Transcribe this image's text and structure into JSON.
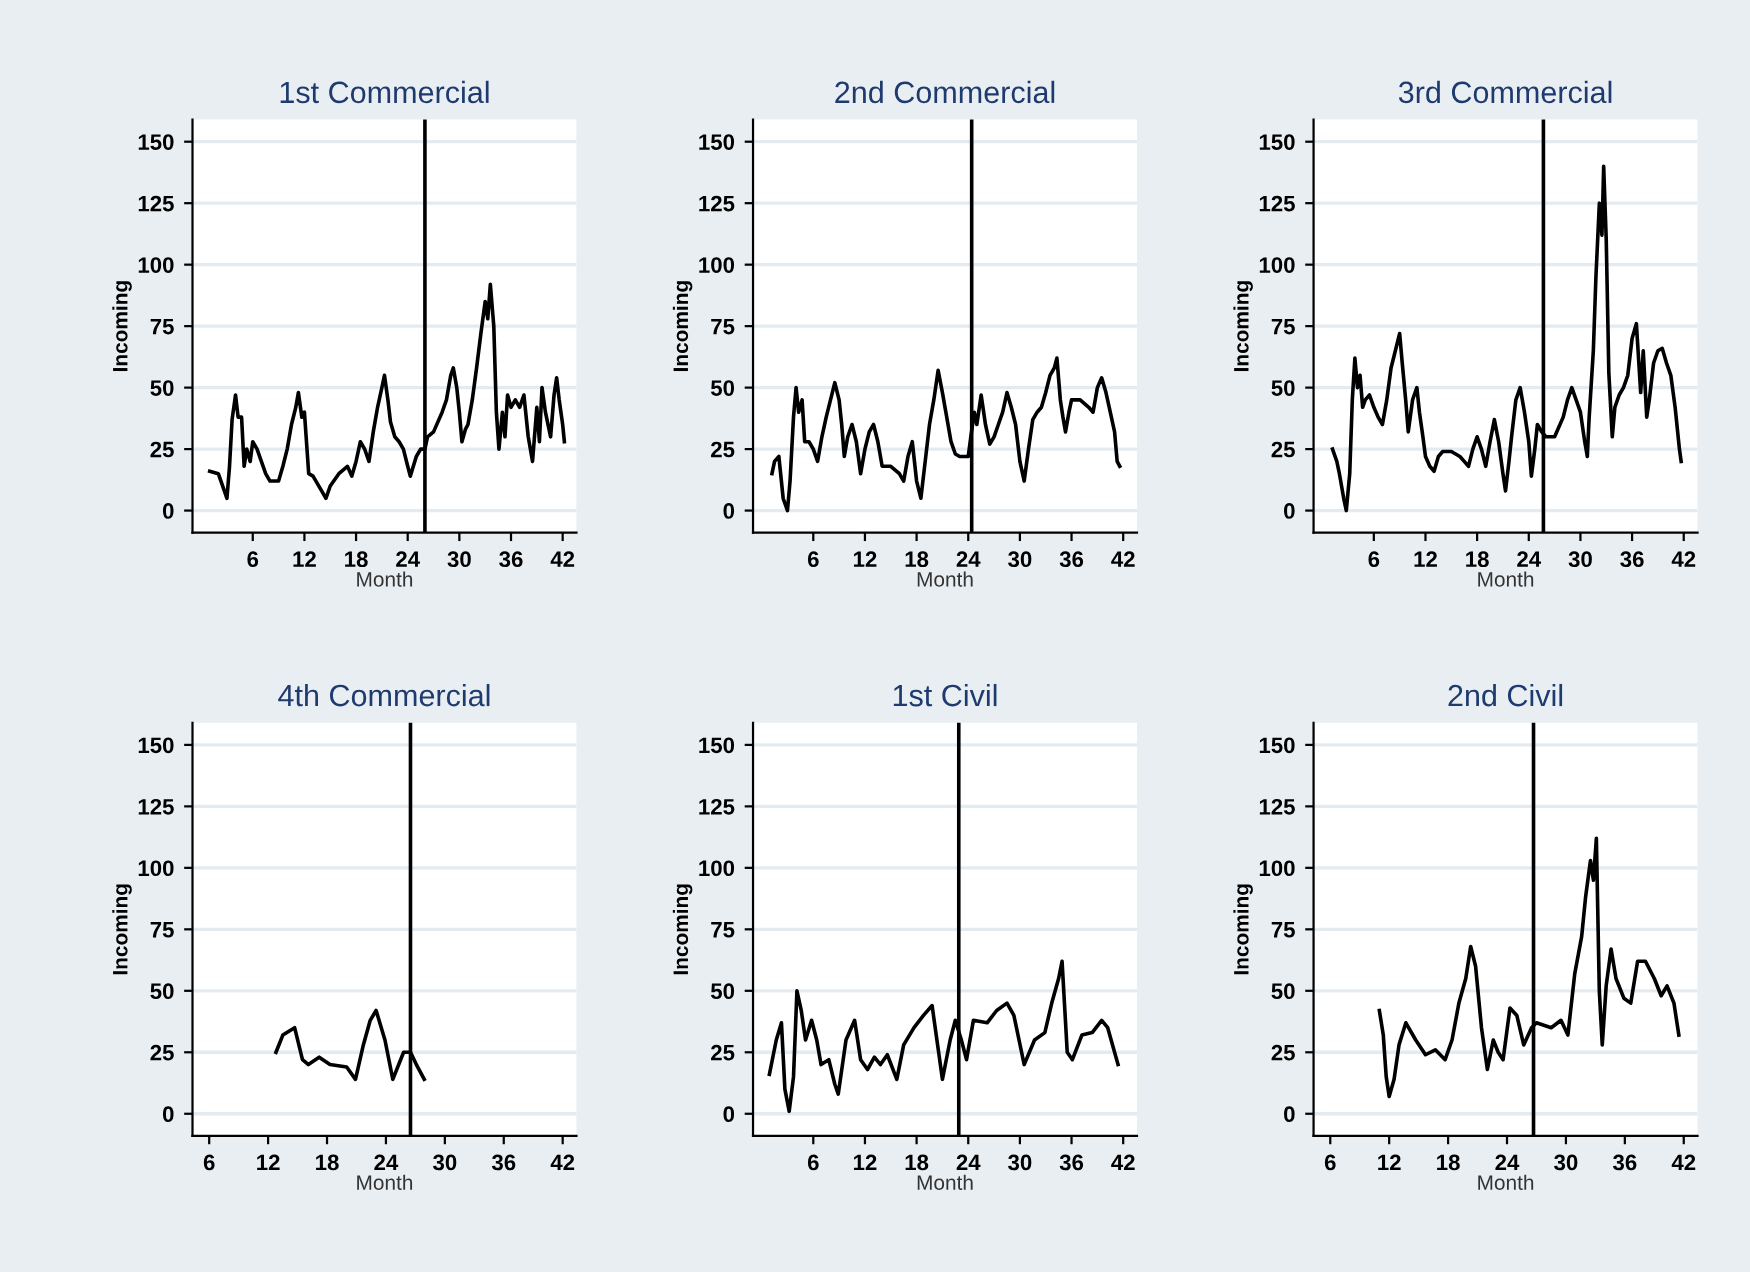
{
  "chart_data": [
    {
      "type": "line",
      "title": "1st Commercial",
      "xlabel": "Month",
      "ylabel": "Incoming",
      "xlim": [
        -1,
        43.6
      ],
      "ylim": [
        -9,
        159
      ],
      "xticks": [
        6,
        12,
        18,
        24,
        30,
        36,
        42
      ],
      "yticks": [
        0,
        25,
        50,
        75,
        100,
        125,
        150
      ],
      "grid": "y",
      "ref_lines": [
        {
          "axis": "x",
          "value": 26,
          "color": "#000000"
        }
      ],
      "series": [
        {
          "color": "#000000",
          "x": [
            1,
            2,
            2.7,
            3,
            3.3,
            3.6,
            4,
            4.3,
            4.7,
            5,
            5.3,
            5.7,
            6,
            6.5,
            7,
            7.5,
            8,
            9,
            9.5,
            10,
            10.5,
            11,
            11.3,
            11.7,
            12,
            12.5,
            13,
            14,
            14.5,
            15,
            16,
            17,
            17.5,
            18,
            18.5,
            19,
            19.5,
            20,
            20.5,
            21,
            21.3,
            21.7,
            22,
            22.5,
            23,
            23.5,
            24,
            24.3,
            25,
            25.5,
            26,
            26.3,
            27,
            28,
            28.5,
            29,
            29.3,
            29.7,
            30,
            30.3,
            30.7,
            31,
            31.5,
            32,
            32.5,
            33,
            33.3,
            33.6,
            34,
            34.3,
            34.6,
            35,
            35.3,
            35.6,
            36,
            36.5,
            37,
            37.5,
            38,
            38.5,
            39,
            39.3,
            39.6,
            40,
            40.3,
            40.6,
            41,
            41.3,
            41.6,
            42,
            42.2
          ],
          "values": [
            16,
            15,
            8,
            5,
            18,
            37,
            47,
            38,
            38,
            18,
            25,
            20,
            28,
            25,
            20,
            15,
            12,
            12,
            18,
            25,
            35,
            42,
            48,
            38,
            40,
            15,
            14,
            8,
            5,
            10,
            15,
            18,
            14,
            20,
            28,
            25,
            20,
            32,
            42,
            50,
            55,
            45,
            36,
            30,
            28,
            25,
            18,
            14,
            22,
            25,
            25,
            30,
            32,
            40,
            45,
            55,
            58,
            50,
            40,
            28,
            33,
            35,
            45,
            58,
            72,
            85,
            78,
            92,
            75,
            40,
            25,
            40,
            30,
            47,
            42,
            45,
            42,
            47,
            30,
            20,
            42,
            28,
            50,
            40,
            35,
            30,
            47,
            54,
            45,
            35,
            28
          ]
        }
      ]
    },
    {
      "type": "line",
      "title": "2nd Commercial",
      "xlabel": "Month",
      "ylabel": "Incoming",
      "xlim": [
        -1,
        43.6
      ],
      "ylim": [
        -9,
        159
      ],
      "xticks": [
        6,
        12,
        18,
        24,
        30,
        36,
        42
      ],
      "yticks": [
        0,
        25,
        50,
        75,
        100,
        125,
        150
      ],
      "grid": "y",
      "ref_lines": [
        {
          "axis": "x",
          "value": 24.4,
          "color": "#000000"
        }
      ],
      "series": [
        {
          "color": "#000000",
          "x": [
            1.2,
            1.5,
            2,
            2.5,
            3,
            3.3,
            3.7,
            4,
            4.3,
            4.7,
            5,
            5.5,
            6,
            6.5,
            7,
            7.5,
            8,
            8.5,
            9,
            9.3,
            9.6,
            10,
            10.5,
            11,
            11.5,
            12,
            12.5,
            13,
            13.5,
            14,
            15,
            16,
            16.5,
            17,
            17.5,
            18,
            18.5,
            19,
            19.5,
            20,
            20.5,
            21,
            21.5,
            22,
            22.5,
            23,
            24,
            24.3,
            24.7,
            25,
            25.5,
            26,
            26.5,
            27,
            27.5,
            28,
            28.5,
            29,
            29.5,
            30,
            30.5,
            31,
            31.5,
            32,
            32.5,
            33,
            33.5,
            34,
            34.3,
            34.7,
            35,
            35.3,
            35.7,
            36,
            37,
            38,
            38.5,
            39,
            39.5,
            40,
            40.5,
            41,
            41.3,
            41.6
          ],
          "values": [
            15,
            20,
            22,
            5,
            0,
            12,
            38,
            50,
            40,
            45,
            28,
            28,
            25,
            20,
            30,
            38,
            45,
            52,
            45,
            35,
            22,
            30,
            35,
            28,
            15,
            25,
            32,
            35,
            28,
            18,
            18,
            15,
            12,
            22,
            28,
            12,
            5,
            20,
            35,
            45,
            57,
            48,
            38,
            28,
            23,
            22,
            22,
            30,
            40,
            35,
            47,
            35,
            27,
            30,
            35,
            40,
            48,
            42,
            35,
            20,
            12,
            25,
            37,
            40,
            42,
            48,
            55,
            58,
            62,
            45,
            38,
            32,
            40,
            45,
            45,
            42,
            40,
            50,
            54,
            48,
            40,
            32,
            20,
            18
          ]
        }
      ]
    },
    {
      "type": "line",
      "title": "3rd Commercial",
      "xlabel": "Month",
      "ylabel": "Incoming",
      "xlim": [
        -1,
        43.6
      ],
      "ylim": [
        -9,
        159
      ],
      "xticks": [
        6,
        12,
        18,
        24,
        30,
        36,
        42
      ],
      "yticks": [
        0,
        25,
        50,
        75,
        100,
        125,
        150
      ],
      "grid": "y",
      "ref_lines": [
        {
          "axis": "x",
          "value": 25.7,
          "color": "#000000"
        }
      ],
      "series": [
        {
          "color": "#000000",
          "x": [
            1.2,
            1.7,
            2,
            2.5,
            2.8,
            3.2,
            3.5,
            3.8,
            4.1,
            4.4,
            4.7,
            5,
            5.5,
            6,
            6.5,
            7,
            7.5,
            8,
            8.5,
            9,
            9.3,
            9.7,
            10,
            10.5,
            11,
            11.3,
            11.7,
            12,
            12.5,
            13,
            13.5,
            14,
            15,
            16,
            16.5,
            17,
            17.5,
            18,
            18.5,
            19,
            19.5,
            20,
            20.5,
            21,
            21.3,
            21.7,
            22,
            22.5,
            23,
            23.5,
            24,
            24.3,
            24.7,
            25,
            25.5,
            26,
            27,
            28,
            28.5,
            29,
            29.5,
            30,
            30.5,
            30.8,
            31,
            31.5,
            31.8,
            32.2,
            32.5,
            32.7,
            33,
            33.3,
            33.7,
            34,
            34.5,
            35,
            35.5,
            36,
            36.5,
            37,
            37.3,
            37.7,
            38,
            38.5,
            39,
            39.5,
            40,
            40.5,
            41,
            41.5,
            41.7
          ],
          "values": [
            25,
            20,
            15,
            5,
            0,
            15,
            45,
            62,
            50,
            55,
            42,
            45,
            47,
            42,
            38,
            35,
            45,
            58,
            65,
            72,
            60,
            45,
            32,
            45,
            50,
            40,
            30,
            22,
            18,
            16,
            22,
            24,
            24,
            22,
            20,
            18,
            25,
            30,
            25,
            18,
            28,
            37,
            28,
            15,
            8,
            20,
            30,
            45,
            50,
            40,
            28,
            14,
            25,
            35,
            32,
            30,
            30,
            38,
            45,
            50,
            45,
            40,
            28,
            22,
            37,
            65,
            95,
            125,
            112,
            140,
            110,
            56,
            30,
            42,
            47,
            50,
            55,
            70,
            76,
            48,
            65,
            38,
            45,
            60,
            65,
            66,
            60,
            55,
            42,
            25,
            20
          ]
        }
      ]
    },
    {
      "type": "line",
      "title": "4th Commercial",
      "xlabel": "Month",
      "ylabel": "Incoming",
      "xlim": [
        4.3,
        43.4
      ],
      "ylim": [
        -9,
        159
      ],
      "xticks": [
        6,
        12,
        18,
        24,
        30,
        36,
        42
      ],
      "yticks": [
        0,
        25,
        50,
        75,
        100,
        125,
        150
      ],
      "grid": "y",
      "ref_lines": [
        {
          "axis": "x",
          "value": 26.5,
          "color": "#000000"
        }
      ],
      "series": [
        {
          "color": "#000000",
          "x": [
            12.8,
            13.5,
            14.7,
            15.5,
            16.1,
            17.2,
            18.3,
            20,
            20.9,
            21.7,
            22.4,
            23,
            23.9,
            24.7,
            25.8,
            26.5,
            27.1,
            27.9
          ],
          "values": [
            25,
            32,
            35,
            22,
            20,
            23,
            20,
            19,
            14,
            28,
            38,
            42,
            30,
            14,
            25,
            25,
            20,
            14
          ]
        }
      ]
    },
    {
      "type": "line",
      "title": "1st Civil",
      "xlabel": "Month",
      "ylabel": "Incoming",
      "xlim": [
        -1,
        43.6
      ],
      "ylim": [
        -9,
        159
      ],
      "xticks": [
        6,
        12,
        18,
        24,
        30,
        36,
        42
      ],
      "yticks": [
        0,
        25,
        50,
        75,
        100,
        125,
        150
      ],
      "grid": "y",
      "ref_lines": [
        {
          "axis": "x",
          "value": 22.9,
          "color": "#000000"
        }
      ],
      "series": [
        {
          "color": "#000000",
          "x": [
            0.9,
            1.7,
            2.3,
            2.7,
            3.2,
            3.7,
            4.1,
            4.6,
            5.1,
            5.8,
            6.4,
            6.9,
            7.8,
            8.5,
            8.9,
            9.8,
            10.8,
            11.5,
            12.3,
            13.1,
            13.8,
            14.6,
            15.7,
            16.5,
            17.7,
            18.8,
            19.8,
            21,
            21.9,
            22.5,
            23.2,
            23.8,
            24.6,
            26.2,
            27.3,
            28.5,
            29.3,
            30.5,
            31.7,
            32.9,
            33.7,
            34.5,
            34.9,
            35.5,
            36.1,
            37.2,
            38.4,
            39.5,
            40.2,
            41.4
          ],
          "values": [
            16,
            30,
            37,
            10,
            1,
            15,
            50,
            42,
            30,
            38,
            30,
            20,
            22,
            12,
            8,
            30,
            38,
            22,
            18,
            23,
            20,
            24,
            14,
            28,
            35,
            40,
            44,
            14,
            30,
            38,
            30,
            22,
            38,
            37,
            42,
            45,
            40,
            20,
            30,
            33,
            45,
            55,
            62,
            25,
            22,
            32,
            33,
            38,
            35,
            20
          ]
        }
      ]
    },
    {
      "type": "line",
      "title": "2nd Civil",
      "xlabel": "Month",
      "ylabel": "Incoming",
      "xlim": [
        4.3,
        43.4
      ],
      "ylim": [
        -9,
        159
      ],
      "xticks": [
        6,
        12,
        18,
        24,
        30,
        36,
        42
      ],
      "yticks": [
        0,
        25,
        50,
        75,
        100,
        125,
        150
      ],
      "grid": "y",
      "ref_lines": [
        {
          "axis": "x",
          "value": 26.7,
          "color": "#000000"
        }
      ],
      "series": [
        {
          "color": "#000000",
          "x": [
            11,
            11.4,
            11.7,
            12,
            12.5,
            13,
            13.7,
            14.7,
            15.7,
            16.7,
            17.7,
            18.4,
            19.1,
            19.8,
            20.3,
            20.8,
            21.4,
            22,
            22.6,
            23.1,
            23.6,
            24.3,
            25,
            25.7,
            26.5,
            27,
            28.5,
            29.5,
            30.2,
            30.9,
            31.6,
            32,
            32.5,
            32.8,
            33.1,
            33.4,
            33.7,
            34.1,
            34.6,
            35.1,
            35.9,
            36.6,
            37.3,
            38.1,
            39,
            39.7,
            40.3,
            41,
            41.5
          ],
          "values": [
            42,
            32,
            15,
            7,
            14,
            28,
            37,
            30,
            24,
            26,
            22,
            30,
            45,
            55,
            68,
            60,
            35,
            18,
            30,
            25,
            22,
            43,
            40,
            28,
            35,
            37,
            35,
            38,
            32,
            57,
            72,
            88,
            103,
            95,
            112,
            50,
            28,
            52,
            67,
            55,
            47,
            45,
            62,
            62,
            55,
            48,
            52,
            45,
            32
          ]
        }
      ]
    }
  ]
}
